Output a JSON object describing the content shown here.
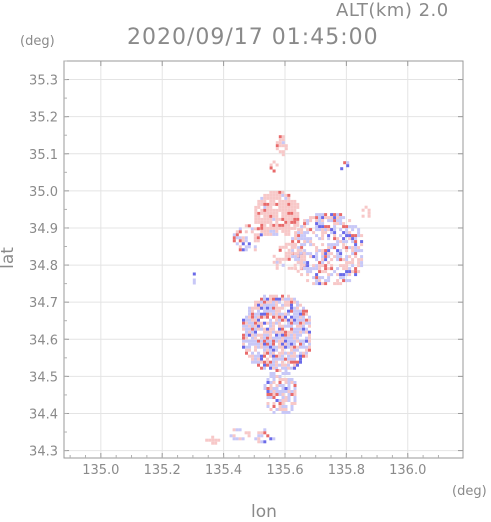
{
  "header": {
    "altitude_label": "ALT(km) 2.0",
    "timestamp": "2020/09/17 01:45:00"
  },
  "axes": {
    "y_unit": "(deg)",
    "x_unit": "(deg)",
    "y_label": "lat",
    "x_label": "lon"
  },
  "chart_data": {
    "type": "heatmap",
    "title": "2020/09/17 01:45:00",
    "subtitle": "ALT(km) 2.0",
    "xlabel": "lon",
    "ylabel": "lat",
    "x_unit": "(deg)",
    "y_unit": "(deg)",
    "xlim": [
      134.88,
      136.18
    ],
    "ylim": [
      34.28,
      35.35
    ],
    "xticks": [
      "135.0",
      "135.2",
      "135.4",
      "135.6",
      "135.8",
      "136.0"
    ],
    "yticks": [
      "34.3",
      "34.4",
      "34.5",
      "34.6",
      "34.7",
      "34.8",
      "34.9",
      "35.0",
      "35.1",
      "35.2",
      "35.3"
    ],
    "grid": true,
    "colors": {
      "positive": "#e86a6a",
      "positive_light": "#f7c8c8",
      "negative": "#6a6ae8",
      "negative_light": "#c8c8f7"
    },
    "regions": [
      {
        "lon": [
          135.5,
          135.64
        ],
        "lat": [
          34.88,
          35.0
        ],
        "sign": "positive",
        "density": 0.85
      },
      {
        "lon": [
          135.57,
          135.6
        ],
        "lat": [
          35.1,
          35.15
        ],
        "sign": "positive",
        "density": 0.7
      },
      {
        "lon": [
          135.55,
          135.57
        ],
        "lat": [
          35.05,
          35.09
        ],
        "sign": "positive",
        "density": 0.7
      },
      {
        "lon": [
          135.62,
          135.85
        ],
        "lat": [
          34.75,
          34.94
        ],
        "sign": "mixed",
        "density": 0.6
      },
      {
        "lon": [
          135.84,
          135.88
        ],
        "lat": [
          34.93,
          34.96
        ],
        "sign": "positive",
        "density": 0.6
      },
      {
        "lon": [
          135.78,
          135.81
        ],
        "lat": [
          35.05,
          35.08
        ],
        "sign": "mixed",
        "density": 0.5
      },
      {
        "lon": [
          135.43,
          135.52
        ],
        "lat": [
          34.84,
          34.91
        ],
        "sign": "mixed",
        "density": 0.45
      },
      {
        "lon": [
          135.46,
          135.68
        ],
        "lat": [
          34.52,
          34.72
        ],
        "sign": "mixed",
        "density": 0.85
      },
      {
        "lon": [
          135.53,
          135.63
        ],
        "lat": [
          34.4,
          34.52
        ],
        "sign": "mixed",
        "density": 0.75
      },
      {
        "lon": [
          135.56,
          135.66
        ],
        "lat": [
          34.78,
          34.86
        ],
        "sign": "positive",
        "density": 0.5
      },
      {
        "lon": [
          135.34,
          135.38
        ],
        "lat": [
          34.32,
          34.34
        ],
        "sign": "positive",
        "density": 0.6
      },
      {
        "lon": [
          135.4,
          135.48
        ],
        "lat": [
          34.33,
          34.36
        ],
        "sign": "mixed",
        "density": 0.5
      },
      {
        "lon": [
          135.5,
          135.57
        ],
        "lat": [
          34.32,
          34.36
        ],
        "sign": "mixed",
        "density": 0.5
      },
      {
        "lon": [
          135.29,
          135.31
        ],
        "lat": [
          34.75,
          34.78
        ],
        "sign": "negative",
        "density": 0.5
      }
    ]
  }
}
